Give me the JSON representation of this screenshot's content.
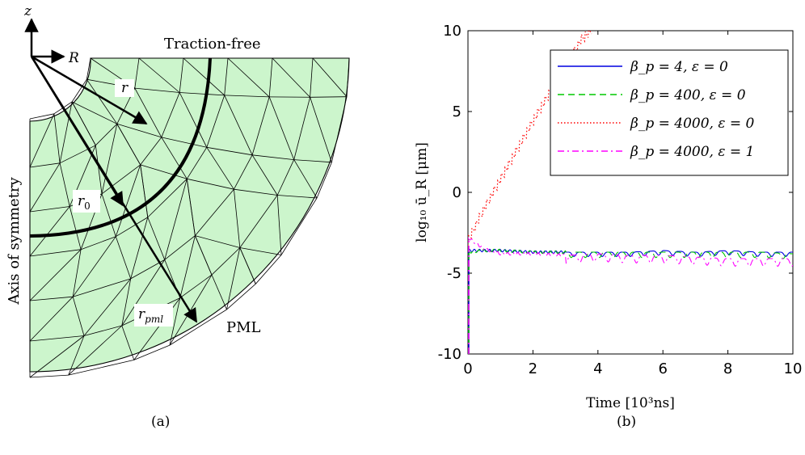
{
  "panel_a": {
    "caption": "(a)",
    "label_z": "z",
    "label_R": "R",
    "label_r": "r",
    "label_r0": "r",
    "label_r0_sub": "0",
    "label_rpml": "r",
    "label_rpml_sub": "pml",
    "label_traction": "Traction-free",
    "label_axis": "Axis of symmetry",
    "label_pml": "PML",
    "colors": {
      "mesh_fill": "#ccf5cc",
      "mesh_line": "#000000"
    }
  },
  "panel_b": {
    "caption": "(b)",
    "legend": [
      {
        "beta": "400",
        "eps": "0",
        "style": "dashed",
        "color": "#00c800"
      }
    ]
  },
  "chart_data": {
    "type": "line",
    "xlabel": "Time [10³ns]",
    "ylabel": "log₁₀ ū_R [μm]",
    "xlim": [
      0,
      10
    ],
    "ylim": [
      -10,
      10
    ],
    "xticks": [
      "0",
      "2",
      "4",
      "6",
      "8",
      "10"
    ],
    "yticks": [
      "10",
      "5",
      "0",
      "-5",
      "-10"
    ],
    "grid": false,
    "legend_position": "top-right",
    "series": [
      {
        "name": "β_p = 4, ε = 0",
        "color": "#0000e0",
        "style": "solid",
        "x": [
          0,
          0.5,
          1,
          2,
          3,
          4,
          5,
          6,
          7,
          8,
          9,
          10
        ],
        "y": [
          -3.6,
          -3.6,
          -3.6,
          -3.7,
          -3.7,
          -3.7,
          -3.7,
          -3.6,
          -3.7,
          -3.6,
          -3.7,
          -3.7
        ]
      },
      {
        "name": "β_p = 400, ε = 0",
        "color": "#00c800",
        "style": "dashed",
        "x": [
          0,
          0.5,
          1,
          2,
          3,
          4,
          5,
          6,
          7,
          8,
          9,
          10
        ],
        "y": [
          -3.7,
          -3.6,
          -3.6,
          -3.7,
          -3.7,
          -3.7,
          -3.7,
          -3.7,
          -3.7,
          -3.7,
          -3.7,
          -3.8
        ]
      },
      {
        "name": "β_p = 4000, ε = 0",
        "color": "#ff0000",
        "style": "dotted",
        "x": [
          0,
          0.5,
          1,
          1.5,
          2,
          2.5,
          3,
          3.5,
          3.8
        ],
        "y": [
          -3.0,
          -1.0,
          0.8,
          2.6,
          4.4,
          6.1,
          7.8,
          9.5,
          10
        ]
      },
      {
        "name": "β_p = 4000, ε = 1",
        "color": "#ff00ff",
        "style": "dashdot",
        "x": [
          0,
          0.5,
          1,
          2,
          3,
          4,
          5,
          6,
          7,
          8,
          9,
          10
        ],
        "y": [
          -2.8,
          -3.5,
          -3.8,
          -3.8,
          -3.9,
          -3.8,
          -3.9,
          -3.9,
          -4.0,
          -4.1,
          -4.1,
          -4.1
        ]
      }
    ]
  }
}
